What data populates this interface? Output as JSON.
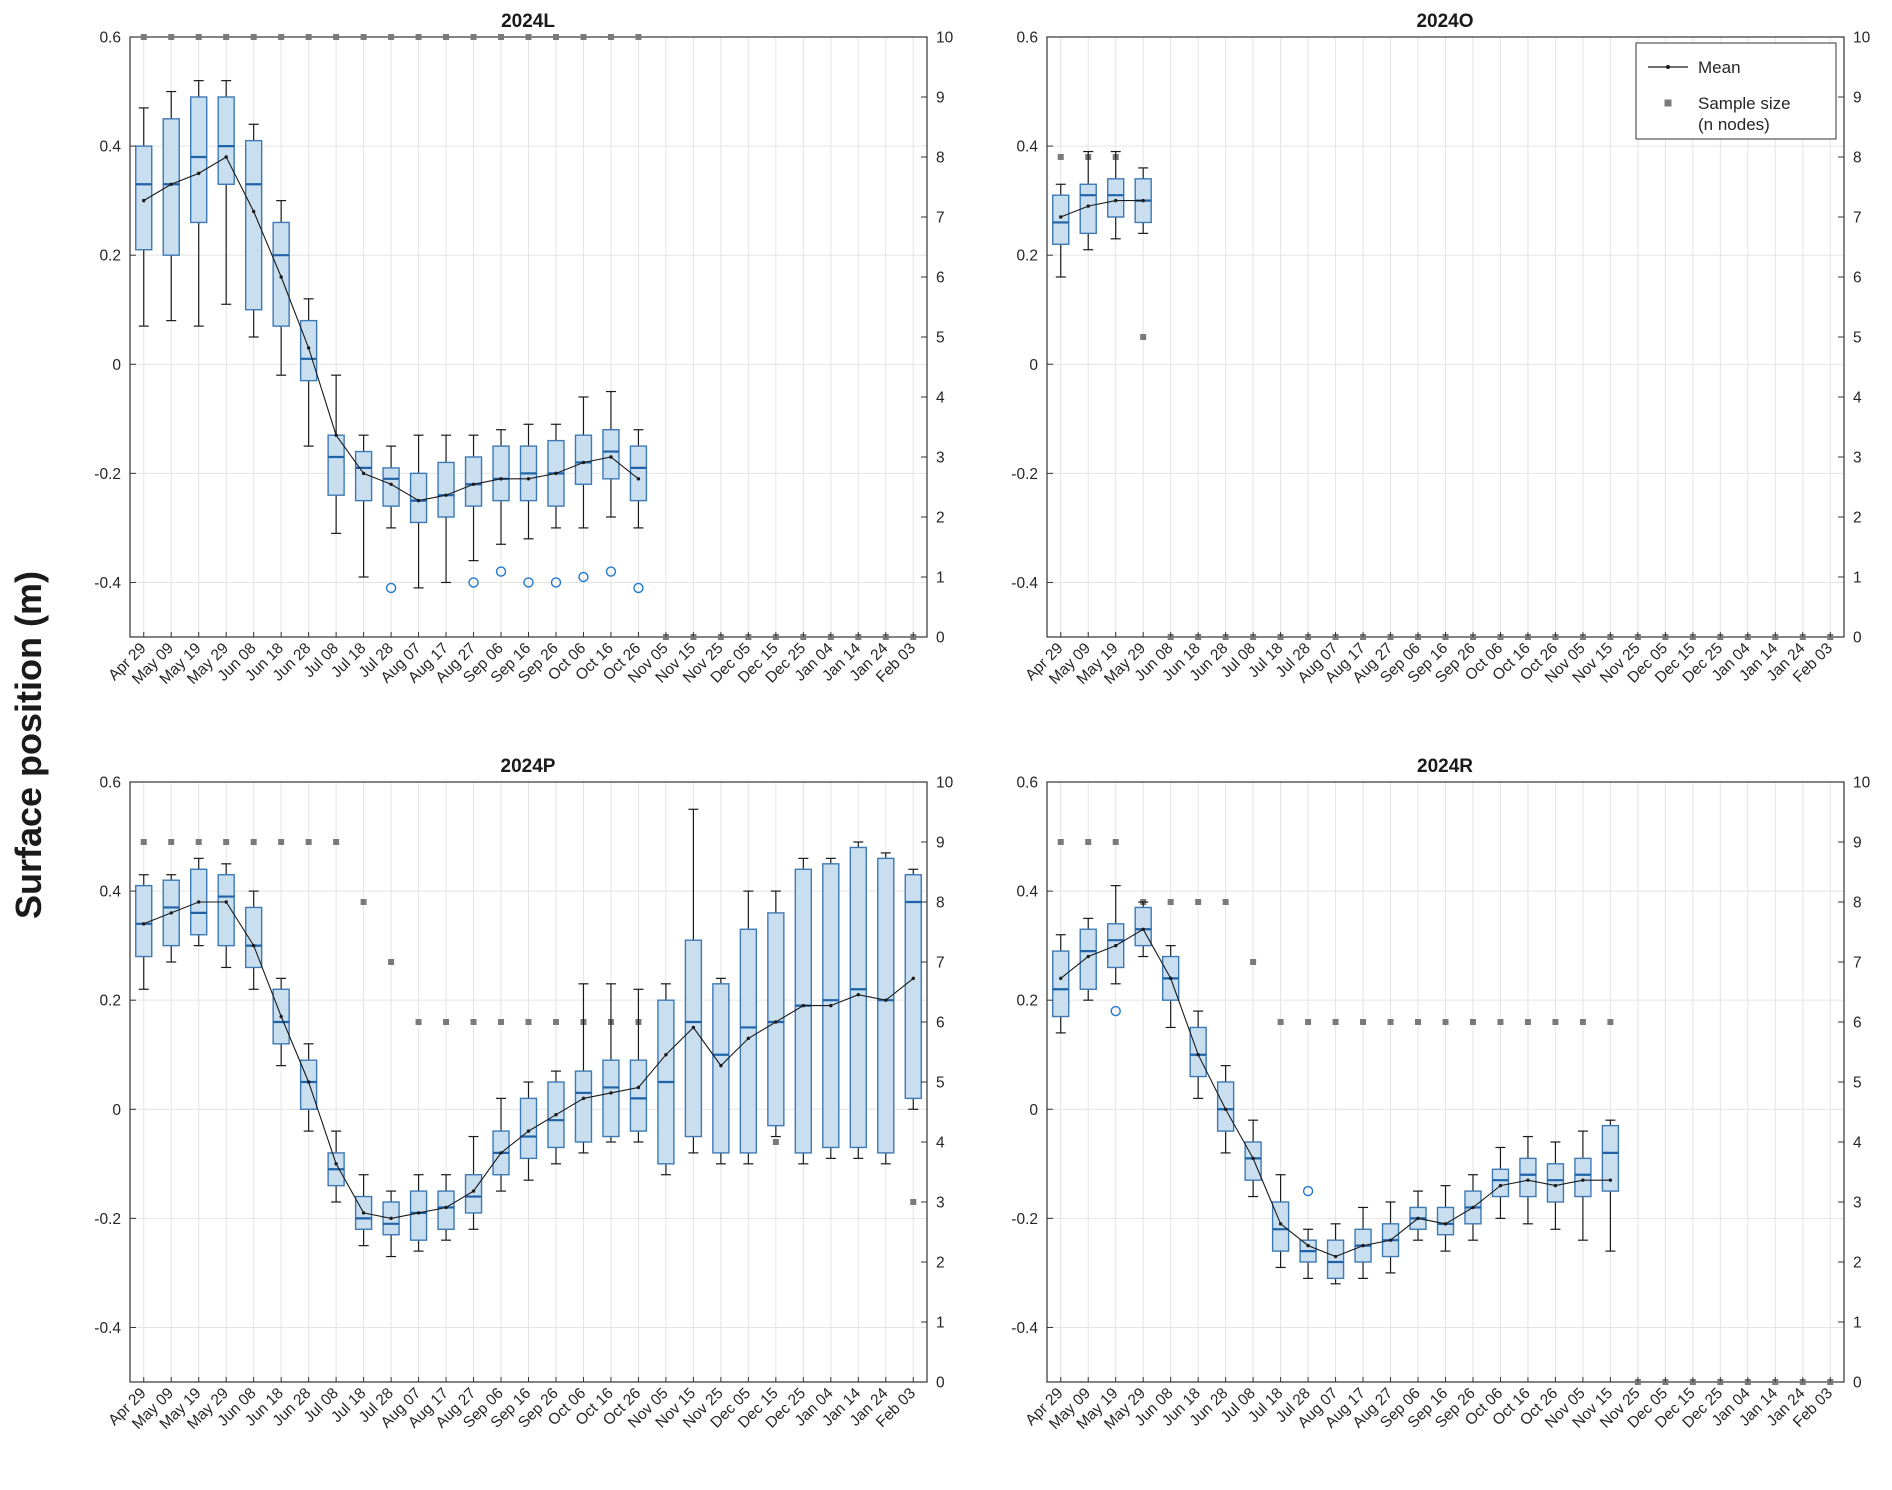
{
  "chart_data": {
    "type": "box",
    "figure_ylabel": "Surface position (m)",
    "box_format": [
      "whisker_lo",
      "q1",
      "median",
      "q3",
      "whisker_hi"
    ],
    "categories": [
      "Apr 29",
      "May 09",
      "May 19",
      "May 29",
      "Jun 08",
      "Jun 18",
      "Jun 28",
      "Jul 08",
      "Jul 18",
      "Jul 28",
      "Aug 07",
      "Aug 17",
      "Aug 27",
      "Sep 06",
      "Sep 16",
      "Sep 26",
      "Oct 06",
      "Oct 16",
      "Oct 26",
      "Nov 05",
      "Nov 15",
      "Nov 25",
      "Dec 05",
      "Dec 15",
      "Dec 25",
      "Jan 04",
      "Jan 14",
      "Jan 24",
      "Feb 03"
    ],
    "axis": {
      "ylim_left": [
        -0.5,
        0.6
      ],
      "yticks_left": [
        -0.4,
        -0.2,
        0,
        0.2,
        0.4,
        0.6
      ],
      "ylim_right": [
        0,
        10
      ],
      "yticks_right": [
        0,
        1,
        2,
        3,
        4,
        5,
        6,
        7,
        8,
        9,
        10
      ],
      "grid": true
    },
    "legend": {
      "mean_label": "Mean",
      "sample_label_line1": "Sample size",
      "sample_label_line2": "(n nodes)",
      "position": "top-right of panel 2024O"
    },
    "colors": {
      "box_fill": "#c9dff0",
      "box_edge": "#3d7ab5",
      "median": "#1f62a8",
      "whisker": "#1a1a1a",
      "mean_line": "#1a1a1a",
      "sample_marker": "#7a7a7a",
      "outlier": "#1f78d1",
      "grid": "#e4e4e4",
      "axis": "#333333"
    },
    "panels": [
      {
        "title": "2024L",
        "legend": false,
        "boxes": [
          [
            0.07,
            0.21,
            0.33,
            0.4,
            0.47
          ],
          [
            0.08,
            0.2,
            0.33,
            0.45,
            0.5
          ],
          [
            0.07,
            0.26,
            0.38,
            0.49,
            0.52
          ],
          [
            0.11,
            0.33,
            0.4,
            0.49,
            0.52
          ],
          [
            0.05,
            0.1,
            0.33,
            0.41,
            0.44
          ],
          [
            -0.02,
            0.07,
            0.2,
            0.26,
            0.3
          ],
          [
            -0.15,
            -0.03,
            0.01,
            0.08,
            0.12
          ],
          [
            -0.31,
            -0.24,
            -0.17,
            -0.13,
            -0.02
          ],
          [
            -0.39,
            -0.25,
            -0.19,
            -0.16,
            -0.13
          ],
          [
            -0.3,
            -0.26,
            -0.21,
            -0.19,
            -0.15
          ],
          [
            -0.41,
            -0.29,
            -0.25,
            -0.2,
            -0.13
          ],
          [
            -0.4,
            -0.28,
            -0.24,
            -0.18,
            -0.13
          ],
          [
            -0.36,
            -0.26,
            -0.22,
            -0.17,
            -0.13
          ],
          [
            -0.33,
            -0.25,
            -0.21,
            -0.15,
            -0.12
          ],
          [
            -0.32,
            -0.25,
            -0.2,
            -0.15,
            -0.11
          ],
          [
            -0.3,
            -0.26,
            -0.2,
            -0.14,
            -0.11
          ],
          [
            -0.3,
            -0.22,
            -0.18,
            -0.13,
            -0.06
          ],
          [
            -0.28,
            -0.21,
            -0.16,
            -0.12,
            -0.05
          ],
          [
            -0.3,
            -0.25,
            -0.19,
            -0.15,
            -0.12
          ],
          null,
          null,
          null,
          null,
          null,
          null,
          null,
          null,
          null,
          null
        ],
        "mean": [
          0.3,
          0.33,
          0.35,
          0.38,
          0.28,
          0.16,
          0.03,
          -0.13,
          -0.2,
          -0.22,
          -0.25,
          -0.24,
          -0.22,
          -0.21,
          -0.21,
          -0.2,
          -0.18,
          -0.17,
          -0.21,
          null,
          null,
          null,
          null,
          null,
          null,
          null,
          null,
          null,
          null
        ],
        "sample_size": [
          10,
          10,
          10,
          10,
          10,
          10,
          10,
          10,
          10,
          10,
          10,
          10,
          10,
          10,
          10,
          10,
          10,
          10,
          10,
          0,
          0,
          0,
          0,
          0,
          0,
          0,
          0,
          0,
          0
        ],
        "outliers": [
          {
            "i": 9,
            "y": -0.41
          },
          {
            "i": 12,
            "y": -0.4
          },
          {
            "i": 13,
            "y": -0.38
          },
          {
            "i": 14,
            "y": -0.4
          },
          {
            "i": 15,
            "y": -0.4
          },
          {
            "i": 16,
            "y": -0.39
          },
          {
            "i": 17,
            "y": -0.38
          },
          {
            "i": 18,
            "y": -0.41
          }
        ]
      },
      {
        "title": "2024O",
        "legend": true,
        "boxes": [
          [
            0.16,
            0.22,
            0.26,
            0.31,
            0.33
          ],
          [
            0.21,
            0.24,
            0.31,
            0.33,
            0.39
          ],
          [
            0.23,
            0.27,
            0.31,
            0.34,
            0.39
          ],
          [
            0.24,
            0.26,
            0.3,
            0.34,
            0.36
          ],
          null,
          null,
          null,
          null,
          null,
          null,
          null,
          null,
          null,
          null,
          null,
          null,
          null,
          null,
          null,
          null,
          null,
          null,
          null,
          null,
          null,
          null,
          null,
          null,
          null
        ],
        "mean": [
          0.27,
          0.29,
          0.3,
          0.3,
          null,
          null,
          null,
          null,
          null,
          null,
          null,
          null,
          null,
          null,
          null,
          null,
          null,
          null,
          null,
          null,
          null,
          null,
          null,
          null,
          null,
          null,
          null,
          null,
          null
        ],
        "sample_size": [
          8,
          8,
          8,
          5,
          0,
          0,
          0,
          0,
          0,
          0,
          0,
          0,
          0,
          0,
          0,
          0,
          0,
          0,
          0,
          0,
          0,
          0,
          0,
          0,
          0,
          0,
          0,
          0,
          0
        ],
        "outliers": []
      },
      {
        "title": "2024P",
        "legend": false,
        "boxes": [
          [
            0.22,
            0.28,
            0.34,
            0.41,
            0.43
          ],
          [
            0.27,
            0.3,
            0.37,
            0.42,
            0.43
          ],
          [
            0.3,
            0.32,
            0.36,
            0.44,
            0.46
          ],
          [
            0.26,
            0.3,
            0.39,
            0.43,
            0.45
          ],
          [
            0.22,
            0.26,
            0.3,
            0.37,
            0.4
          ],
          [
            0.08,
            0.12,
            0.16,
            0.22,
            0.24
          ],
          [
            -0.04,
            0.0,
            0.05,
            0.09,
            0.12
          ],
          [
            -0.17,
            -0.14,
            -0.11,
            -0.08,
            -0.04
          ],
          [
            -0.25,
            -0.22,
            -0.2,
            -0.16,
            -0.12
          ],
          [
            -0.27,
            -0.23,
            -0.21,
            -0.17,
            -0.15
          ],
          [
            -0.26,
            -0.24,
            -0.19,
            -0.15,
            -0.12
          ],
          [
            -0.24,
            -0.22,
            -0.18,
            -0.15,
            -0.12
          ],
          [
            -0.22,
            -0.19,
            -0.16,
            -0.12,
            -0.05
          ],
          [
            -0.15,
            -0.12,
            -0.08,
            -0.04,
            0.02
          ],
          [
            -0.13,
            -0.09,
            -0.05,
            0.02,
            0.05
          ],
          [
            -0.1,
            -0.07,
            -0.02,
            0.05,
            0.07
          ],
          [
            -0.08,
            -0.06,
            0.03,
            0.07,
            0.23
          ],
          [
            -0.06,
            -0.05,
            0.04,
            0.09,
            0.23
          ],
          [
            -0.06,
            -0.04,
            0.02,
            0.09,
            0.22
          ],
          [
            -0.12,
            -0.1,
            0.05,
            0.2,
            0.23
          ],
          [
            -0.08,
            -0.05,
            0.16,
            0.31,
            0.55
          ],
          [
            -0.1,
            -0.08,
            0.1,
            0.23,
            0.24
          ],
          [
            -0.1,
            -0.08,
            0.15,
            0.33,
            0.4
          ],
          [
            -0.05,
            -0.03,
            0.16,
            0.36,
            0.4
          ],
          [
            -0.1,
            -0.08,
            0.19,
            0.44,
            0.46
          ],
          [
            -0.09,
            -0.07,
            0.2,
            0.45,
            0.46
          ],
          [
            -0.09,
            -0.07,
            0.22,
            0.48,
            0.49
          ],
          [
            -0.1,
            -0.08,
            0.2,
            0.46,
            0.47
          ],
          [
            0.0,
            0.02,
            0.38,
            0.43,
            0.44
          ]
        ],
        "mean": [
          0.34,
          0.36,
          0.38,
          0.38,
          0.3,
          0.17,
          0.05,
          -0.1,
          -0.19,
          -0.2,
          -0.19,
          -0.18,
          -0.15,
          -0.08,
          -0.04,
          -0.01,
          0.02,
          0.03,
          0.04,
          0.1,
          0.15,
          0.08,
          0.13,
          0.16,
          0.19,
          0.19,
          0.21,
          0.2,
          0.24
        ],
        "sample_size": [
          9,
          9,
          9,
          9,
          9,
          9,
          9,
          9,
          8,
          7,
          6,
          6,
          6,
          6,
          6,
          6,
          6,
          6,
          6,
          5,
          5,
          4,
          4,
          4,
          4,
          4,
          4,
          4,
          3
        ],
        "outliers": []
      },
      {
        "title": "2024R",
        "legend": false,
        "boxes": [
          [
            0.14,
            0.17,
            0.22,
            0.29,
            0.32
          ],
          [
            0.2,
            0.22,
            0.29,
            0.33,
            0.35
          ],
          [
            0.23,
            0.26,
            0.31,
            0.34,
            0.41
          ],
          [
            0.28,
            0.3,
            0.33,
            0.37,
            0.38
          ],
          [
            0.15,
            0.2,
            0.24,
            0.28,
            0.3
          ],
          [
            0.02,
            0.06,
            0.1,
            0.15,
            0.18
          ],
          [
            -0.08,
            -0.04,
            0.0,
            0.05,
            0.08
          ],
          [
            -0.16,
            -0.13,
            -0.09,
            -0.06,
            -0.02
          ],
          [
            -0.29,
            -0.26,
            -0.22,
            -0.17,
            -0.12
          ],
          [
            -0.31,
            -0.28,
            -0.26,
            -0.24,
            -0.22
          ],
          [
            -0.32,
            -0.31,
            -0.28,
            -0.24,
            -0.21
          ],
          [
            -0.31,
            -0.28,
            -0.25,
            -0.22,
            -0.18
          ],
          [
            -0.3,
            -0.27,
            -0.24,
            -0.21,
            -0.17
          ],
          [
            -0.24,
            -0.22,
            -0.2,
            -0.18,
            -0.15
          ],
          [
            -0.26,
            -0.23,
            -0.21,
            -0.18,
            -0.14
          ],
          [
            -0.24,
            -0.21,
            -0.18,
            -0.15,
            -0.12
          ],
          [
            -0.2,
            -0.16,
            -0.13,
            -0.11,
            -0.07
          ],
          [
            -0.21,
            -0.16,
            -0.12,
            -0.09,
            -0.05
          ],
          [
            -0.22,
            -0.17,
            -0.13,
            -0.1,
            -0.06
          ],
          [
            -0.24,
            -0.16,
            -0.12,
            -0.09,
            -0.04
          ],
          [
            -0.26,
            -0.15,
            -0.08,
            -0.03,
            -0.02
          ],
          null,
          null,
          null,
          null,
          null,
          null,
          null,
          null
        ],
        "mean": [
          0.24,
          0.28,
          0.3,
          0.33,
          0.24,
          0.1,
          0.0,
          -0.09,
          -0.21,
          -0.25,
          -0.27,
          -0.25,
          -0.24,
          -0.2,
          -0.21,
          -0.18,
          -0.14,
          -0.13,
          -0.14,
          -0.13,
          -0.13,
          null,
          null,
          null,
          null,
          null,
          null,
          null,
          null
        ],
        "sample_size": [
          9,
          9,
          9,
          8,
          8,
          8,
          8,
          7,
          6,
          6,
          6,
          6,
          6,
          6,
          6,
          6,
          6,
          6,
          6,
          6,
          6,
          0,
          0,
          0,
          0,
          0,
          0,
          0,
          0
        ],
        "outliers": [
          {
            "i": 2,
            "y": 0.18
          },
          {
            "i": 9,
            "y": -0.15
          }
        ]
      }
    ]
  }
}
